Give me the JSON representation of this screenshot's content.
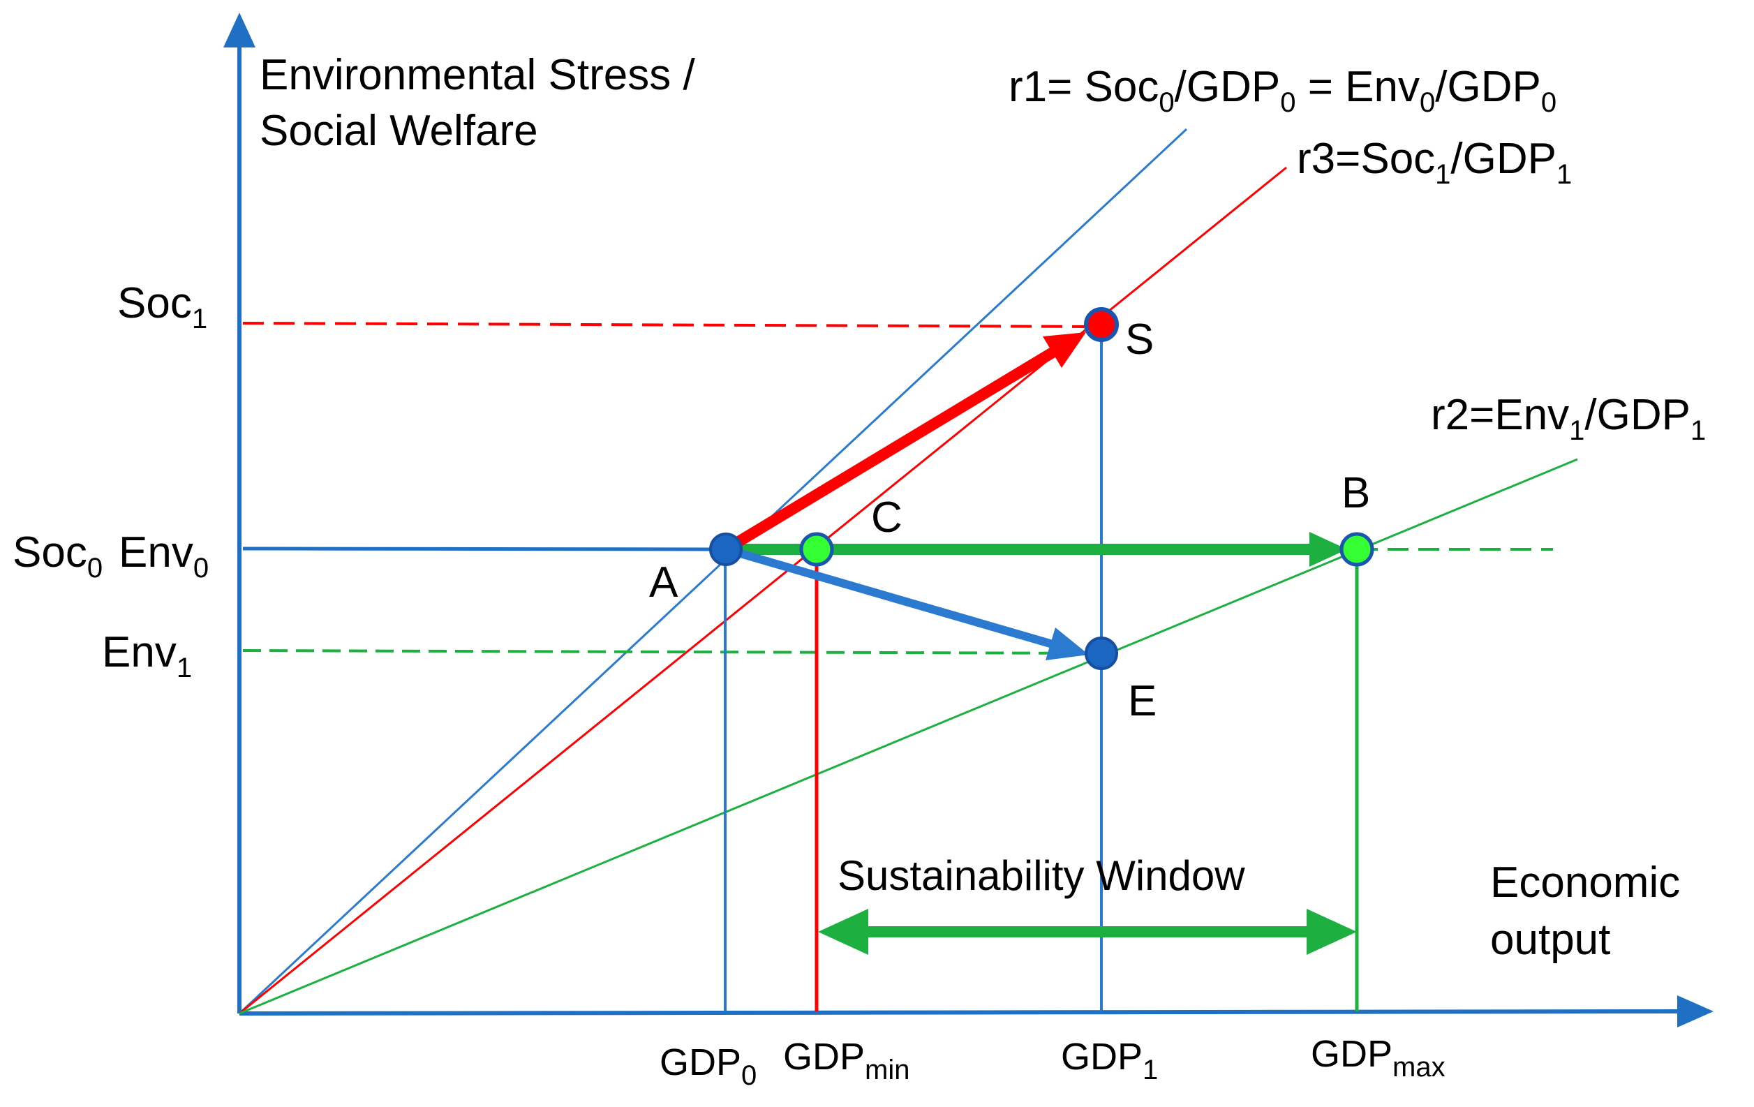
{
  "axes": {
    "y_label_line1": "Environmental Stress /",
    "y_label_line2": "Social Welfare",
    "x_label_line1": "Economic",
    "x_label_line2": "output"
  },
  "y_ticks": {
    "soc1": {
      "base": "Soc",
      "sub": "1"
    },
    "soc0": {
      "base": "Soc",
      "sub": "0"
    },
    "env0": {
      "base": "Env",
      "sub": "0"
    },
    "env1": {
      "base": "Env",
      "sub": "1"
    }
  },
  "x_ticks": {
    "gdp0": {
      "base": "GDP",
      "sub": "0"
    },
    "gdpmin": {
      "base": "GDP",
      "sub": "min"
    },
    "gdp1": {
      "base": "GDP",
      "sub": "1"
    },
    "gdpmax": {
      "base": "GDP",
      "sub": "max"
    }
  },
  "rays": {
    "r1": {
      "p1": "r1= Soc",
      "s1": "0",
      "p2": "/GDP",
      "s2": "0",
      "p3": " = Env",
      "s3": "0",
      "p4": "/GDP",
      "s4": "0"
    },
    "r3": {
      "p1": "r3=Soc",
      "s1": "1",
      "p2": "/GDP",
      "s2": "1"
    },
    "r2": {
      "p1": "r2=Env",
      "s1": "1",
      "p2": "/GDP",
      "s2": "1"
    }
  },
  "points": {
    "A": "A",
    "B": "B",
    "C": "C",
    "S": "S",
    "E": "E"
  },
  "window_label": "Sustainability Window",
  "colors": {
    "axis": "#1f6fc4",
    "blue": "#2a7bd0",
    "red": "#ff0000",
    "green": "#1db040",
    "point_blue": "#1a66c0",
    "point_green": "#33ff33",
    "point_red": "#ff0000"
  }
}
